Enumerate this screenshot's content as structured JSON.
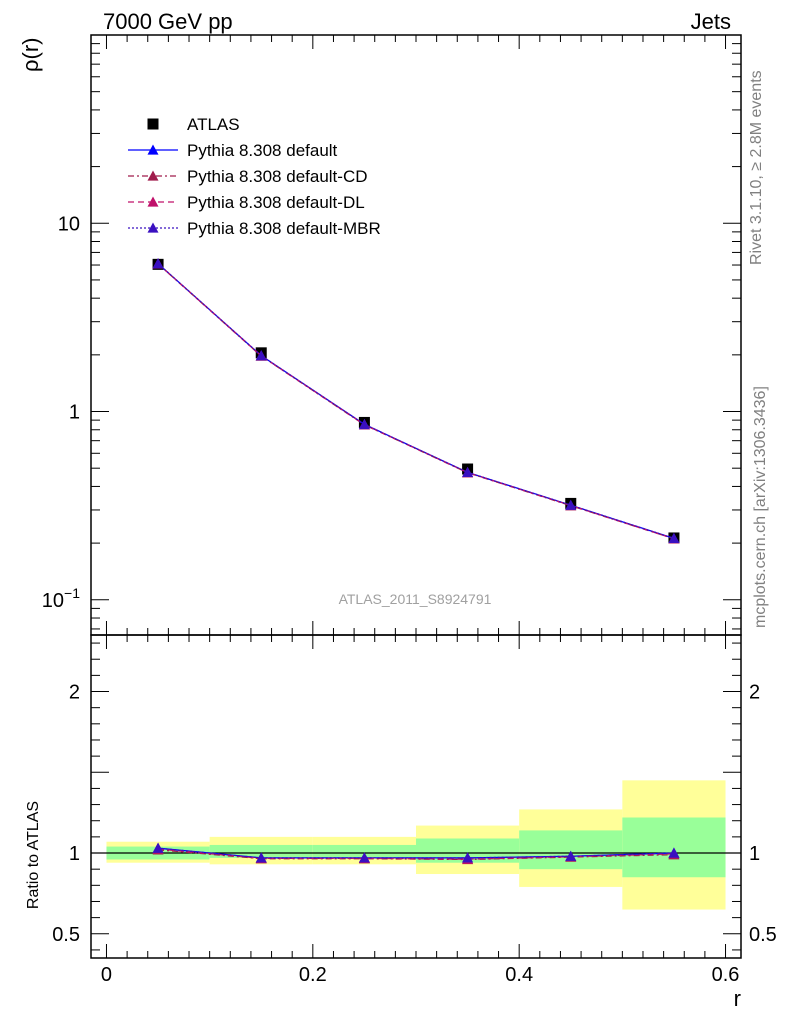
{
  "header": {
    "left": "7000 GeV pp",
    "right": "Jets"
  },
  "side_labels": {
    "rivet": "Rivet 3.1.10, ≥ 2.8M events",
    "mcplots": "mcplots.cern.ch [arXiv:1306.3436]"
  },
  "watermark": "ATLAS_2011_S8924791",
  "chart_data": [
    {
      "type": "line",
      "panel": "main",
      "ylabel": "ρ(r)",
      "xlabel": "",
      "yscale": "log",
      "xlim": [
        -0.015,
        0.615
      ],
      "ylim": [
        0.065,
        100
      ],
      "yticks": [
        {
          "value": 0.1,
          "base": "10",
          "exp": "−1"
        },
        {
          "value": 1,
          "label": "1"
        },
        {
          "value": 10,
          "label": "10"
        }
      ],
      "legend_position": "top-left",
      "x": [
        0.05,
        0.15,
        0.25,
        0.35,
        0.45,
        0.55
      ],
      "data_points": {
        "name": "ATLAS",
        "values": [
          6.05,
          2.05,
          0.875,
          0.495,
          0.325,
          0.213
        ],
        "color": "#000000",
        "marker": "square"
      },
      "series": [
        {
          "name": "Pythia 8.308 default",
          "values": [
            6.1,
            1.98,
            0.855,
            0.475,
            0.318,
            0.212
          ],
          "color": "#0000ff",
          "dash": "",
          "marker": "triangle"
        },
        {
          "name": "Pythia 8.308 default-CD",
          "values": [
            6.08,
            1.97,
            0.85,
            0.473,
            0.316,
            0.211
          ],
          "color": "#a01c4c",
          "dash": "6,3,2,3",
          "marker": "triangle"
        },
        {
          "name": "Pythia 8.308 default-DL",
          "values": [
            6.09,
            1.975,
            0.852,
            0.474,
            0.317,
            0.211
          ],
          "color": "#c0106a",
          "dash": "6,4",
          "marker": "triangle"
        },
        {
          "name": "Pythia 8.308 default-MBR",
          "values": [
            6.1,
            1.98,
            0.854,
            0.475,
            0.318,
            0.212
          ],
          "color": "#3a10c0",
          "dash": "2,2",
          "marker": "triangle"
        }
      ]
    },
    {
      "type": "line",
      "panel": "ratio",
      "ylabel": "Ratio to ATLAS",
      "xlabel": "r",
      "yscale": "linear",
      "xlim": [
        -0.015,
        0.615
      ],
      "ylim": [
        0.35,
        2.35
      ],
      "xticks": [
        {
          "value": 0,
          "label": "0"
        },
        {
          "value": 0.2,
          "label": "0.2"
        },
        {
          "value": 0.4,
          "label": "0.4"
        },
        {
          "value": 0.6,
          "label": "0.6"
        }
      ],
      "yticks": [
        {
          "value": 0.5,
          "label": "0.5"
        },
        {
          "value": 1,
          "label": "1"
        },
        {
          "value": 2,
          "label": "2"
        }
      ],
      "bands": [
        {
          "x0": 0.0,
          "x1": 0.1,
          "green": [
            0.96,
            1.04
          ],
          "yellow": [
            0.94,
            1.07
          ]
        },
        {
          "x0": 0.1,
          "x1": 0.2,
          "green": [
            0.97,
            1.05
          ],
          "yellow": [
            0.93,
            1.1
          ]
        },
        {
          "x0": 0.2,
          "x1": 0.3,
          "green": [
            0.97,
            1.05
          ],
          "yellow": [
            0.93,
            1.1
          ]
        },
        {
          "x0": 0.3,
          "x1": 0.4,
          "green": [
            0.94,
            1.09
          ],
          "yellow": [
            0.87,
            1.17
          ]
        },
        {
          "x0": 0.4,
          "x1": 0.5,
          "green": [
            0.9,
            1.14
          ],
          "yellow": [
            0.79,
            1.27
          ]
        },
        {
          "x0": 0.5,
          "x1": 0.6,
          "green": [
            0.85,
            1.22
          ],
          "yellow": [
            0.65,
            1.45
          ]
        }
      ],
      "x": [
        0.05,
        0.15,
        0.25,
        0.35,
        0.45,
        0.55
      ],
      "series": [
        {
          "name": "Pythia 8.308 default",
          "values": [
            1.03,
            0.97,
            0.97,
            0.97,
            0.98,
            1.0
          ],
          "color": "#0000ff",
          "dash": ""
        },
        {
          "name": "Pythia 8.308 default-CD",
          "values": [
            1.02,
            0.965,
            0.965,
            0.96,
            0.975,
            0.99
          ],
          "color": "#a01c4c",
          "dash": "6,3,2,3"
        },
        {
          "name": "Pythia 8.308 default-DL",
          "values": [
            1.025,
            0.967,
            0.967,
            0.962,
            0.977,
            0.995
          ],
          "color": "#c0106a",
          "dash": "6,4"
        },
        {
          "name": "Pythia 8.308 default-MBR",
          "values": [
            1.03,
            0.97,
            0.97,
            0.97,
            0.98,
            1.0
          ],
          "color": "#3a10c0",
          "dash": "2,2"
        }
      ]
    }
  ]
}
